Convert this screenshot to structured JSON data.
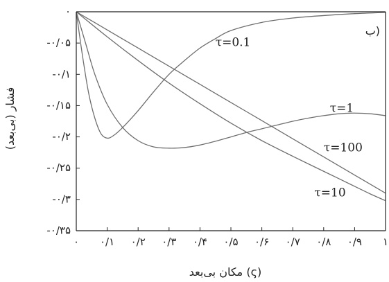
{
  "chart_data": {
    "type": "line",
    "title": "",
    "panel_label": "ب)",
    "xlabel": "مکان بی‌بعد (ς)",
    "ylabel": "فشار (بی‌بعد)",
    "xlim": [
      0,
      1
    ],
    "ylim": [
      -0.35,
      0
    ],
    "grid": false,
    "x_ticks": [
      {
        "value": 0,
        "label": "۰"
      },
      {
        "value": 0.1,
        "label": "۰/۱"
      },
      {
        "value": 0.2,
        "label": "۰/۲"
      },
      {
        "value": 0.3,
        "label": "۰/۳"
      },
      {
        "value": 0.4,
        "label": "۰/۴"
      },
      {
        "value": 0.5,
        "label": "۰/۵"
      },
      {
        "value": 0.6,
        "label": "۰/۶"
      },
      {
        "value": 0.7,
        "label": "۰/۷"
      },
      {
        "value": 0.8,
        "label": "۰/۸"
      },
      {
        "value": 0.9,
        "label": "۰/۹"
      },
      {
        "value": 1,
        "label": "۱"
      }
    ],
    "y_ticks": [
      {
        "value": 0,
        "label": "۰"
      },
      {
        "value": -0.05,
        "label": "-۰/۰۵"
      },
      {
        "value": -0.1,
        "label": "-۰/۱"
      },
      {
        "value": -0.15,
        "label": "-۰/۱۵"
      },
      {
        "value": -0.2,
        "label": "-۰/۲"
      },
      {
        "value": -0.25,
        "label": "-۰/۲۵"
      },
      {
        "value": -0.3,
        "label": "-۰/۳"
      },
      {
        "value": -0.35,
        "label": "-۰/۳۵"
      }
    ],
    "series": [
      {
        "name": "τ=0.1",
        "label_at": [
          0.45,
          -0.05
        ],
        "x": [
          0,
          0.02,
          0.04,
          0.06,
          0.08,
          0.1,
          0.12,
          0.15,
          0.2,
          0.25,
          0.3,
          0.35,
          0.4,
          0.45,
          0.5,
          0.6,
          0.7,
          0.8,
          0.9,
          1.0
        ],
        "y": [
          0,
          -0.07,
          -0.13,
          -0.17,
          -0.195,
          -0.202,
          -0.198,
          -0.185,
          -0.158,
          -0.128,
          -0.1,
          -0.078,
          -0.058,
          -0.043,
          -0.03,
          -0.017,
          -0.01,
          -0.006,
          -0.003,
          -0.001
        ]
      },
      {
        "name": "τ=1",
        "label_at": [
          0.82,
          -0.155
        ],
        "x": [
          0,
          0.03,
          0.06,
          0.1,
          0.15,
          0.2,
          0.25,
          0.3,
          0.35,
          0.4,
          0.45,
          0.5,
          0.55,
          0.6,
          0.65,
          0.7,
          0.75,
          0.8,
          0.85,
          0.9,
          0.95,
          1.0
        ],
        "y": [
          0,
          -0.05,
          -0.1,
          -0.148,
          -0.185,
          -0.206,
          -0.216,
          -0.218,
          -0.217,
          -0.213,
          -0.207,
          -0.2,
          -0.193,
          -0.187,
          -0.181,
          -0.175,
          -0.17,
          -0.166,
          -0.163,
          -0.162,
          -0.163,
          -0.166
        ]
      },
      {
        "name": "τ=100",
        "label_at": [
          0.8,
          -0.218
        ],
        "x": [
          0,
          0.1,
          0.2,
          0.3,
          0.4,
          0.5,
          0.6,
          0.7,
          0.8,
          0.9,
          1.0
        ],
        "y": [
          0,
          -0.029,
          -0.058,
          -0.087,
          -0.116,
          -0.145,
          -0.174,
          -0.203,
          -0.232,
          -0.261,
          -0.29
        ]
      },
      {
        "name": "τ=10",
        "label_at": [
          0.77,
          -0.29
        ],
        "x": [
          0,
          0.1,
          0.2,
          0.3,
          0.4,
          0.5,
          0.6,
          0.7,
          0.8,
          0.9,
          0.95,
          1.0
        ],
        "y": [
          0,
          -0.04,
          -0.078,
          -0.114,
          -0.147,
          -0.178,
          -0.206,
          -0.231,
          -0.255,
          -0.279,
          -0.291,
          -0.302
        ]
      }
    ]
  }
}
